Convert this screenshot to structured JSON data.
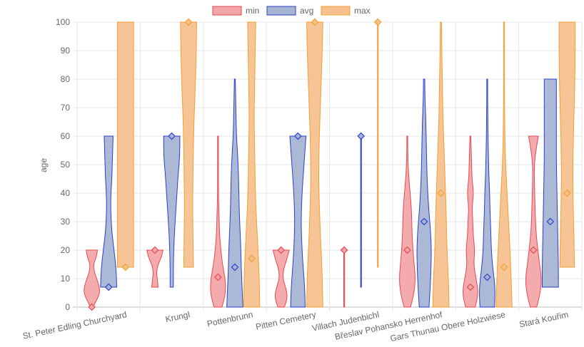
{
  "chart_data": {
    "type": "violin",
    "title": "",
    "xlabel": "",
    "ylabel": "age",
    "ylim": [
      0,
      100
    ],
    "y_ticks": [
      0,
      10,
      20,
      30,
      40,
      50,
      60,
      70,
      80,
      90,
      100
    ],
    "categories": [
      "St. Peter Edling Churchyard",
      "Krungl",
      "Pottenbrunn",
      "Pitten Cemetery",
      "Villach Judenbichl",
      "Břeslav Pohansko Herrenhof",
      "Gars Thunau Obere Holzwiese",
      "Stará Kouřim"
    ],
    "legend": {
      "position": "top-center"
    },
    "series": [
      {
        "name": "min",
        "color": "#e8474f",
        "fill": "#f2a6aa",
        "medians": [
          0,
          20,
          10.5,
          20,
          20,
          20,
          7,
          20
        ],
        "violins": [
          {
            "lo": 0,
            "hi": 20,
            "w": [
              0.15,
              0.6,
              1.0,
              0.9,
              0.6,
              0.3,
              0.2,
              0.55,
              0.7
            ]
          },
          {
            "lo": 7,
            "hi": 20,
            "w": [
              0.4,
              0.3,
              0.2,
              0.35,
              0.8,
              1.0
            ]
          },
          {
            "lo": 0,
            "hi": 60,
            "w": [
              0.5,
              0.95,
              0.9,
              0.55,
              0.35,
              0.2,
              0.15,
              0.1,
              0.05,
              0.05,
              0.05,
              0.05,
              0.02
            ]
          },
          {
            "lo": 0,
            "hi": 20,
            "w": [
              0.4,
              0.8,
              0.6,
              0.2,
              0.3,
              0.7,
              1.0
            ]
          },
          {
            "lo": 0,
            "hi": 20,
            "w": [
              0.03,
              0.03,
              0.03
            ]
          },
          {
            "lo": 0,
            "hi": 60,
            "w": [
              0.4,
              0.85,
              1.0,
              0.85,
              0.7,
              0.6,
              0.55,
              0.5,
              0.35,
              0.2,
              0.1,
              0.05,
              0.03
            ]
          },
          {
            "lo": 0,
            "hi": 60,
            "w": [
              0.6,
              1.0,
              0.7,
              0.4,
              0.55,
              0.35,
              0.3,
              0.2,
              0.4,
              0.2,
              0.15,
              0.1,
              0.05
            ]
          },
          {
            "lo": 0,
            "hi": 60,
            "w": [
              0.4,
              0.85,
              1.0,
              0.75,
              0.55,
              0.35,
              0.25,
              0.2,
              0.15,
              0.1,
              0.1,
              0.3,
              0.6
            ]
          }
        ]
      },
      {
        "name": "avg",
        "color": "#2b3fc9",
        "fill": "#a7b4d4",
        "medians": [
          7,
          60,
          14,
          60,
          60,
          30,
          10.5,
          30
        ],
        "violins": [
          {
            "lo": 7,
            "hi": 60,
            "w": [
              1.0,
              0.95,
              0.8,
              0.6,
              0.4,
              0.3,
              0.25,
              0.3,
              0.4,
              0.45,
              0.5,
              0.55
            ]
          },
          {
            "lo": 7,
            "hi": 60,
            "w": [
              0.2,
              0.2,
              0.25,
              0.35,
              0.5,
              0.65,
              0.8,
              1.0,
              1.0
            ]
          },
          {
            "lo": 0,
            "hi": 80,
            "w": [
              1.0,
              0.9,
              0.8,
              0.75,
              0.65,
              0.55,
              0.5,
              0.45,
              0.35,
              0.2,
              0.15,
              0.1,
              0.05
            ]
          },
          {
            "lo": 0,
            "hi": 60,
            "w": [
              0.9,
              0.85,
              0.7,
              0.55,
              0.45,
              0.4,
              0.45,
              0.55,
              0.7,
              0.85,
              1.0
            ]
          },
          {
            "lo": 7,
            "hi": 60,
            "w": [
              0.03,
              0.03,
              0.03
            ]
          },
          {
            "lo": 0,
            "hi": 80,
            "w": [
              0.6,
              0.75,
              0.85,
              0.9,
              0.8,
              0.6,
              0.45,
              0.35,
              0.3,
              0.25,
              0.2,
              0.1,
              0.08
            ]
          },
          {
            "lo": 0,
            "hi": 80,
            "w": [
              0.9,
              1.0,
              0.7,
              0.5,
              0.45,
              0.35,
              0.3,
              0.2,
              0.15,
              0.1,
              0.08,
              0.05,
              0.04
            ]
          },
          {
            "lo": 7,
            "hi": 80,
            "w": [
              1.0,
              1.0,
              0.95,
              0.9,
              0.85,
              0.8,
              0.75,
              0.75,
              0.75,
              0.75,
              0.75
            ]
          }
        ]
      },
      {
        "name": "max",
        "color": "#f0a030",
        "fill": "#f6c18f",
        "medians": [
          14,
          100,
          17,
          100,
          100,
          40,
          14,
          40
        ],
        "violins": [
          {
            "lo": 14,
            "hi": 100,
            "w": [
              1.0,
              1.0,
              1.0,
              1.0,
              1.0
            ]
          },
          {
            "lo": 14,
            "hi": 100,
            "w": [
              0.6,
              0.55,
              0.5,
              0.55,
              0.6,
              0.7,
              0.85,
              0.95,
              1.0
            ]
          },
          {
            "lo": 0,
            "hi": 100,
            "w": [
              1.0,
              0.95,
              0.85,
              0.7,
              0.55,
              0.45,
              0.4,
              0.35,
              0.3,
              0.35,
              0.4,
              0.45,
              0.5
            ]
          },
          {
            "lo": 0,
            "hi": 100,
            "w": [
              1.0,
              0.95,
              0.85,
              0.7,
              0.6,
              0.5,
              0.5,
              0.55,
              0.65,
              0.75,
              0.85,
              0.95,
              1.0
            ]
          },
          {
            "lo": 14,
            "hi": 100,
            "w": [
              0.03,
              0.03,
              0.03
            ]
          },
          {
            "lo": 0,
            "hi": 100,
            "w": [
              1.0,
              0.95,
              0.8,
              0.7,
              0.65,
              0.55,
              0.45,
              0.35,
              0.25,
              0.2,
              0.15,
              0.1,
              0.08
            ]
          },
          {
            "lo": 0,
            "hi": 100,
            "w": [
              1.0,
              0.9,
              0.8,
              0.65,
              0.5,
              0.35,
              0.2,
              0.12,
              0.08,
              0.05,
              0.04,
              0.03,
              0.02
            ]
          },
          {
            "lo": 14,
            "hi": 100,
            "w": [
              0.9,
              0.85,
              0.75,
              0.7,
              0.75,
              0.85,
              0.95,
              1.0,
              1.0
            ]
          }
        ]
      }
    ]
  }
}
